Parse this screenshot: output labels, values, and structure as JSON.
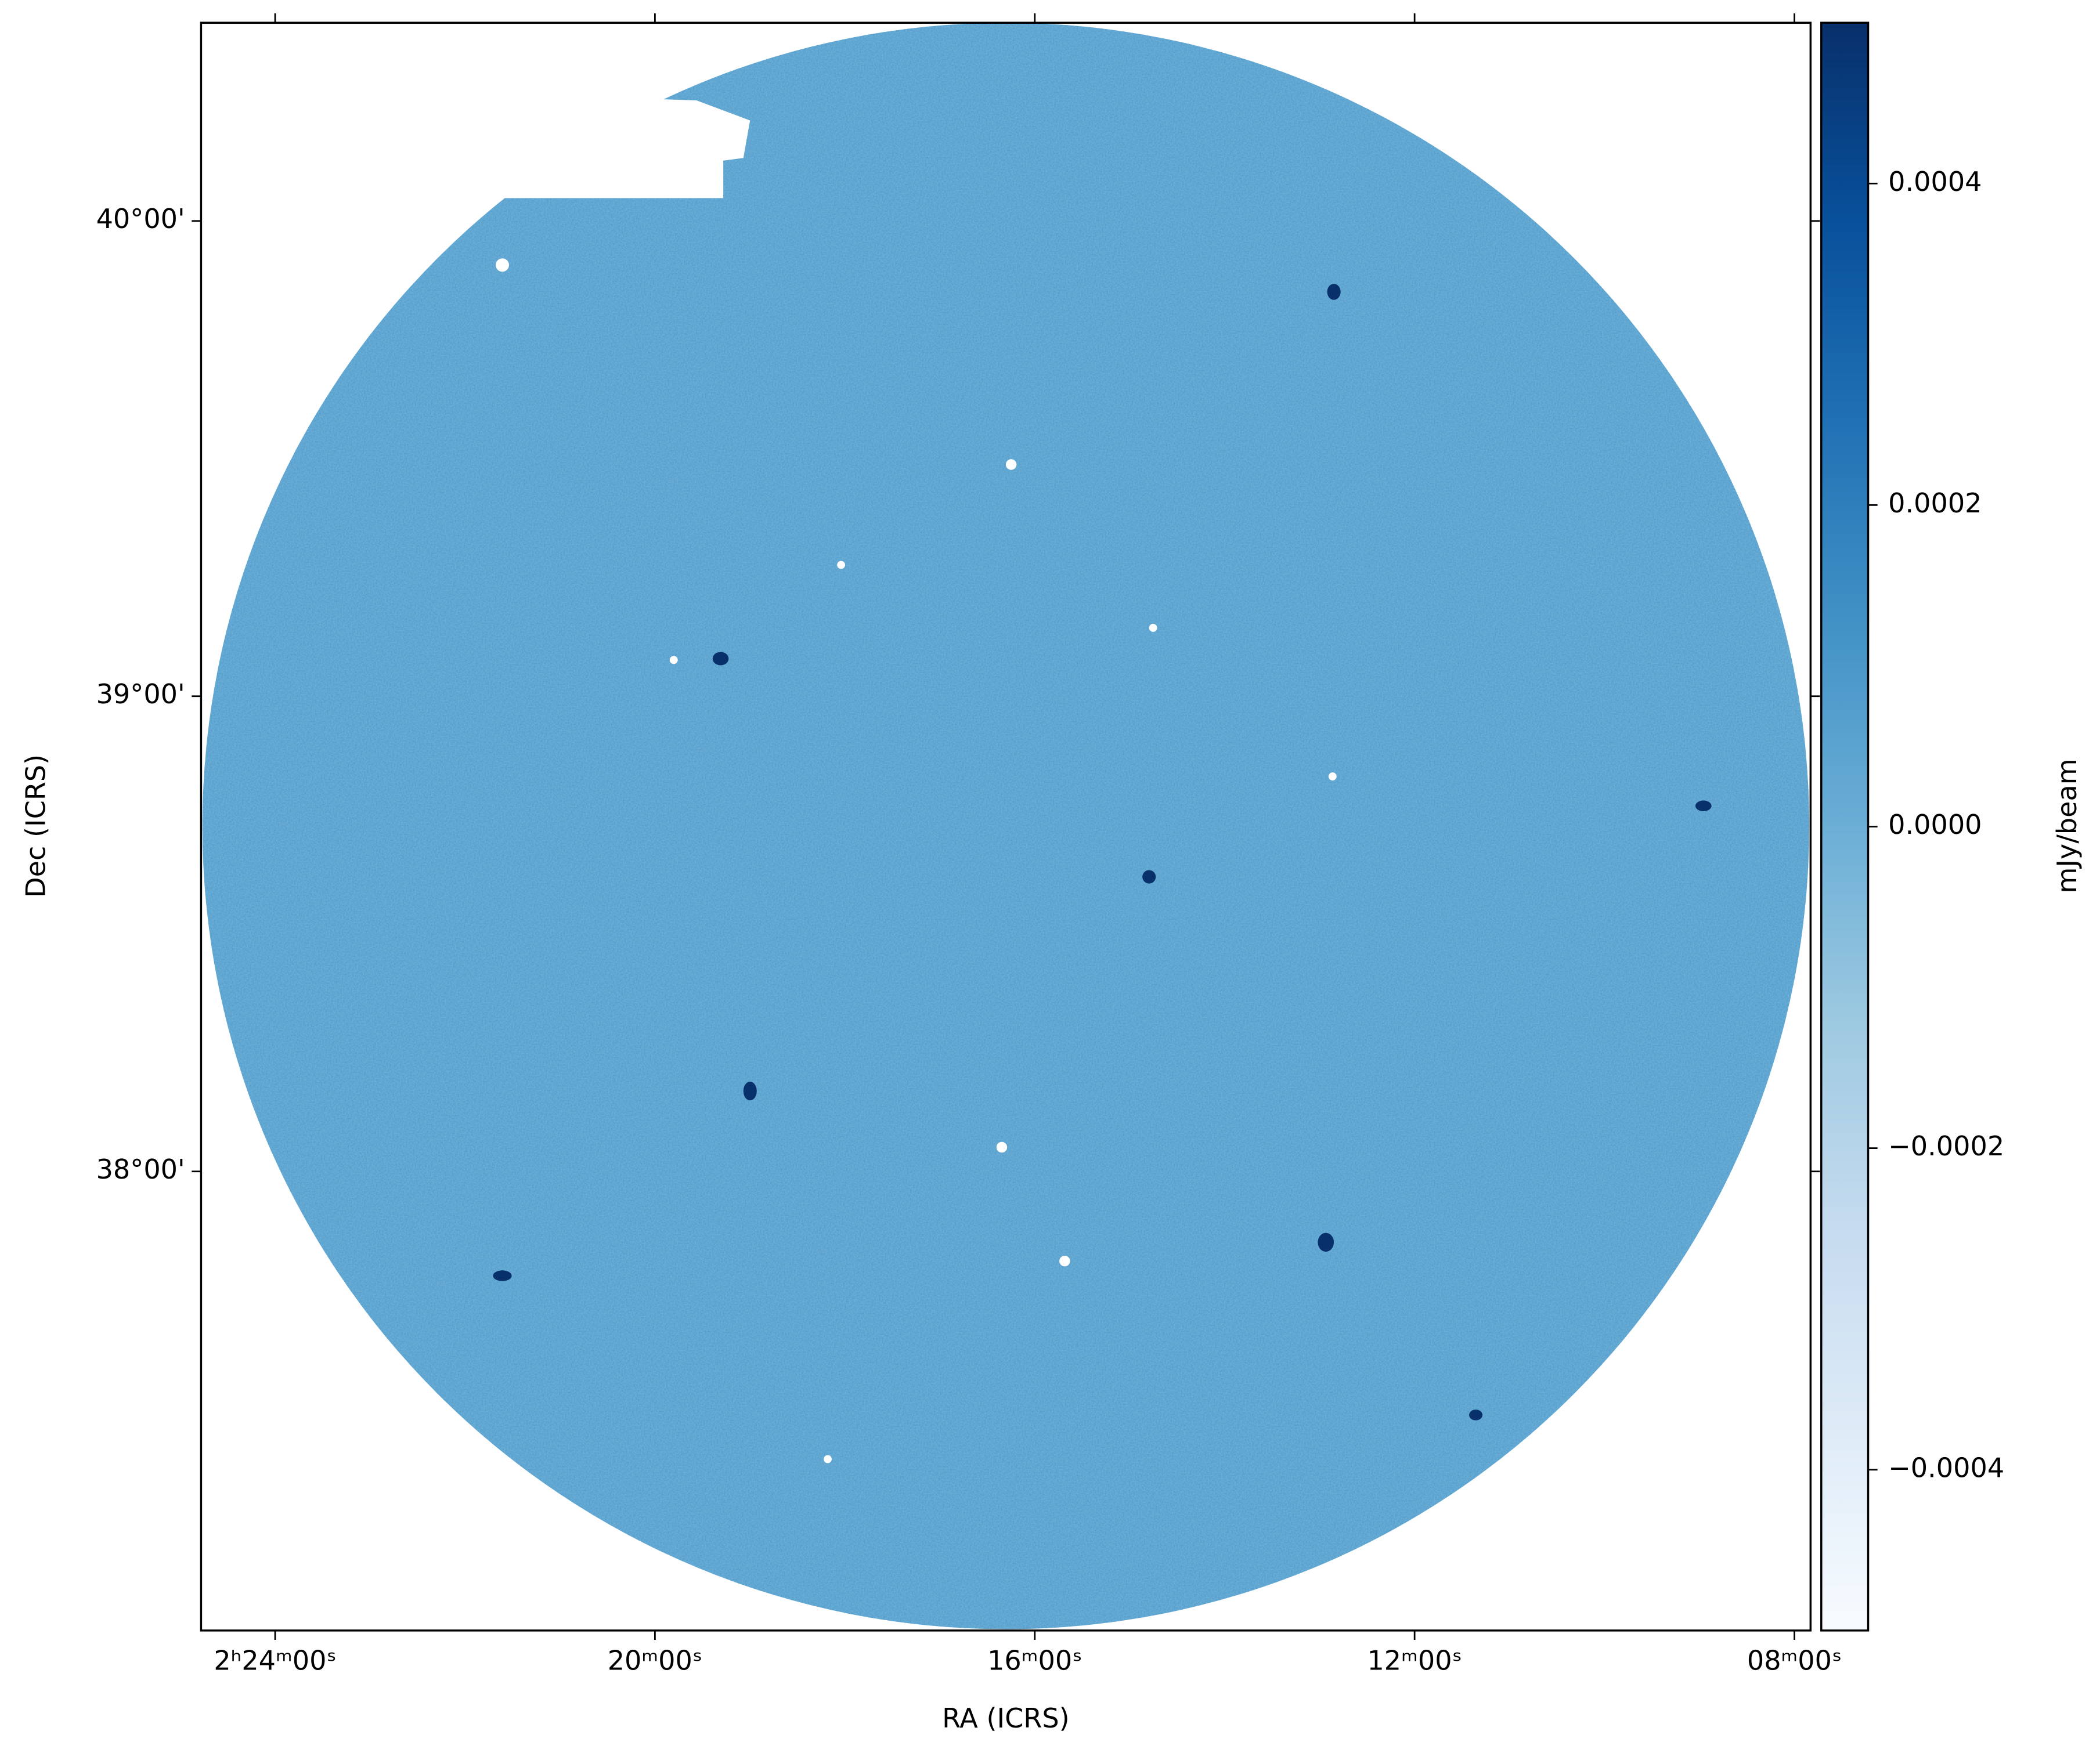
{
  "chart_data": {
    "type": "image",
    "x_label": "RA (ICRS)",
    "y_label": "Dec (ICRS)",
    "colorbar_label": "mJy/beam",
    "xlim": [
      144.78,
      127.83
    ],
    "xticks": [
      {
        "value": 144,
        "label": "2ʰ24ᵐ00ˢ"
      },
      {
        "value": 140,
        "label": "20ᵐ00ˢ"
      },
      {
        "value": 136,
        "label": "16ᵐ00ˢ"
      },
      {
        "value": 132,
        "label": "12ᵐ00ˢ"
      },
      {
        "value": 128,
        "label": "08ᵐ00ˢ"
      }
    ],
    "ylim": [
      37.034,
      40.417
    ],
    "yticks": [
      {
        "value": 38,
        "label": "38°00'"
      },
      {
        "value": 39,
        "label": "39°00'"
      },
      {
        "value": 40,
        "label": "40°00'"
      }
    ],
    "clim": [
      -0.0005,
      0.0005
    ],
    "cticks": [
      {
        "value": -0.0004,
        "label": "−0.0004"
      },
      {
        "value": -0.0002,
        "label": "−0.0002"
      },
      {
        "value": 0,
        "label": "0.0000"
      },
      0.0002,
      0.0004
    ],
    "cmap_colors": [
      "#f7fbff",
      "#deebf7",
      "#c6dbef",
      "#9ecae1",
      "#6baed6",
      "#4292c6",
      "#2171b5",
      "#08519c",
      "#08306b"
    ]
  }
}
